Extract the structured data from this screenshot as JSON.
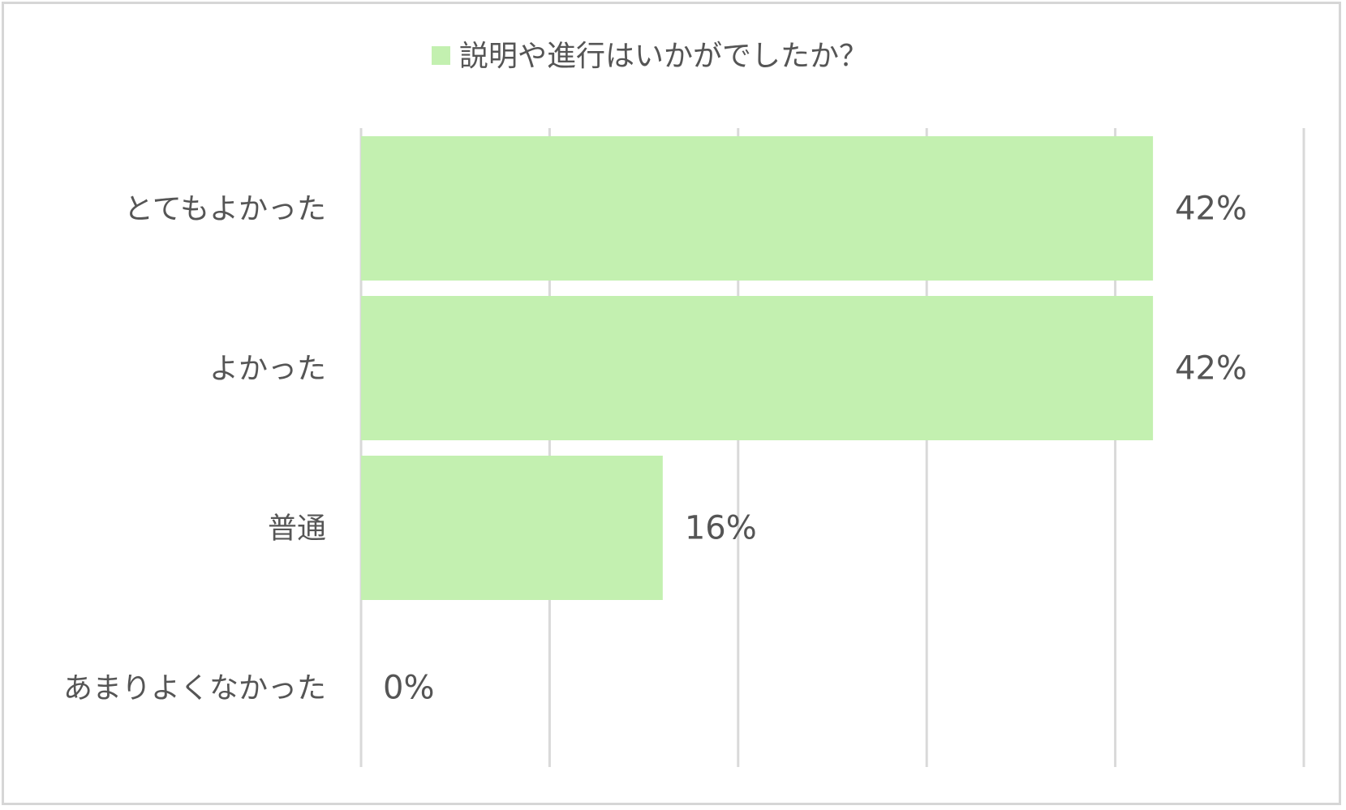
{
  "chart_data": {
    "type": "bar",
    "orientation": "horizontal",
    "legend": {
      "label": "説明や進行はいかがでしたか？",
      "position": "top"
    },
    "categories": [
      "とてもよかった",
      "よかった",
      "普通",
      "あまりよくなかった"
    ],
    "values": [
      42,
      42,
      16,
      0
    ],
    "data_labels": [
      "42%",
      "42%",
      "16%",
      "0%"
    ],
    "unit": "%",
    "xlim": [
      0,
      50
    ],
    "x_gridlines": [
      0,
      10,
      20,
      30,
      40,
      50
    ],
    "grid": true,
    "colors": {
      "bar": "#c3f0b0",
      "grid": "#d9d9d9",
      "text": "#555555",
      "border": "#d6d6d6"
    }
  }
}
